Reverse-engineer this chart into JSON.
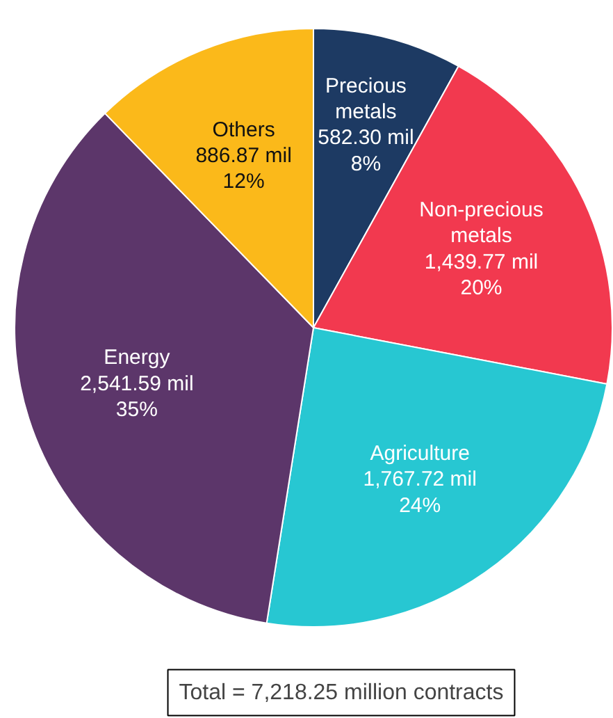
{
  "chart_data": {
    "type": "pie",
    "categories": [
      "Precious metals",
      "Non-precious metals",
      "Agriculture",
      "Energy",
      "Others"
    ],
    "values": [
      582.3,
      1439.77,
      1767.72,
      2541.59,
      886.87
    ],
    "colors": [
      "#1d3a63",
      "#f2394f",
      "#27c7d2",
      "#5c366a",
      "#fbb91a"
    ],
    "value_labels": [
      "582.30 mil\n8%",
      "1,439.77 mil\n20%",
      "1,767.72 mil\n24%",
      "2,541.59 mil\n35%",
      "886.87 mil\n12%"
    ],
    "annotations": [
      "Total = 7,218.25 million contracts"
    ],
    "legend": false
  }
}
